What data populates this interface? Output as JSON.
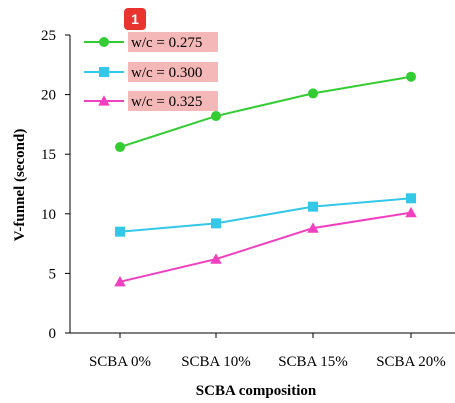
{
  "badge": "1",
  "chart_data": {
    "type": "line",
    "title": "",
    "xlabel": "SCBA composition",
    "ylabel": "V-funnel (second)",
    "categories": [
      "SCBA 0%",
      "SCBA 10%",
      "SCBA 15%",
      "SCBA 20%"
    ],
    "ylim": [
      0,
      25
    ],
    "yticks": [
      0,
      5,
      10,
      15,
      20,
      25
    ],
    "grid": false,
    "legend_position": "top-left",
    "series": [
      {
        "name": "w/c = 0.275",
        "values": [
          15.6,
          18.2,
          20.1,
          21.5
        ],
        "color": "#33cc33",
        "marker": "circle"
      },
      {
        "name": "w/c = 0.300",
        "values": [
          8.5,
          9.2,
          10.6,
          11.3
        ],
        "color": "#33c8e8",
        "marker": "square"
      },
      {
        "name": "w/c = 0.325",
        "values": [
          4.3,
          6.2,
          8.8,
          10.1
        ],
        "color": "#f040c0",
        "marker": "triangle"
      }
    ]
  }
}
